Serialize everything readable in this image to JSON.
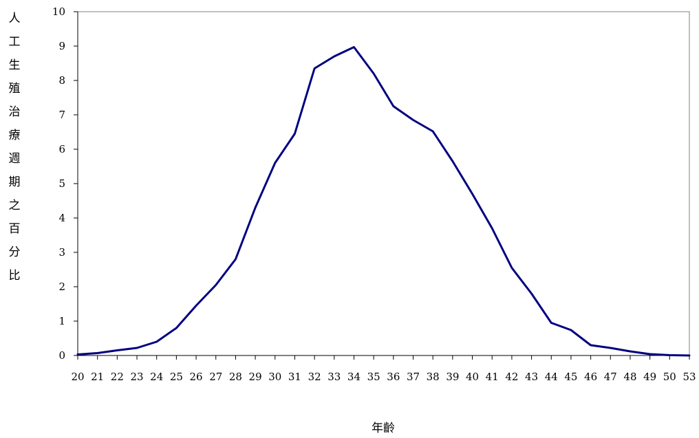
{
  "chart_data": {
    "type": "line",
    "title": "",
    "xlabel": "年齡",
    "ylabel": "人工生殖治療週期之百分比",
    "ylim": [
      0,
      10
    ],
    "y_ticks": [
      0,
      1,
      2,
      3,
      4,
      5,
      6,
      7,
      8,
      9,
      10
    ],
    "x_ticks": [
      20,
      21,
      22,
      23,
      24,
      25,
      26,
      27,
      28,
      29,
      30,
      31,
      32,
      33,
      34,
      35,
      36,
      37,
      38,
      39,
      40,
      41,
      42,
      43,
      44,
      45,
      46,
      47,
      48,
      49,
      50,
      53
    ],
    "grid": false,
    "legend": "none",
    "line_color": "#000080",
    "series": [
      {
        "name": "",
        "points": [
          [
            20,
            0.03
          ],
          [
            21,
            0.07
          ],
          [
            22,
            0.15
          ],
          [
            23,
            0.22
          ],
          [
            24,
            0.4
          ],
          [
            25,
            0.8
          ],
          [
            26,
            1.45
          ],
          [
            27,
            2.05
          ],
          [
            28,
            2.8
          ],
          [
            29,
            4.3
          ],
          [
            30,
            5.6
          ],
          [
            31,
            6.45
          ],
          [
            32,
            8.35
          ],
          [
            33,
            8.7
          ],
          [
            34,
            8.97
          ],
          [
            35,
            8.2
          ],
          [
            36,
            7.25
          ],
          [
            37,
            6.85
          ],
          [
            38,
            6.52
          ],
          [
            39,
            5.65
          ],
          [
            40,
            4.7
          ],
          [
            41,
            3.7
          ],
          [
            42,
            2.55
          ],
          [
            43,
            1.8
          ],
          [
            44,
            0.95
          ],
          [
            45,
            0.74
          ],
          [
            46,
            0.3
          ],
          [
            47,
            0.22
          ],
          [
            48,
            0.12
          ],
          [
            49,
            0.04
          ],
          [
            50,
            0.01
          ],
          [
            53,
            0.0
          ]
        ]
      }
    ]
  }
}
